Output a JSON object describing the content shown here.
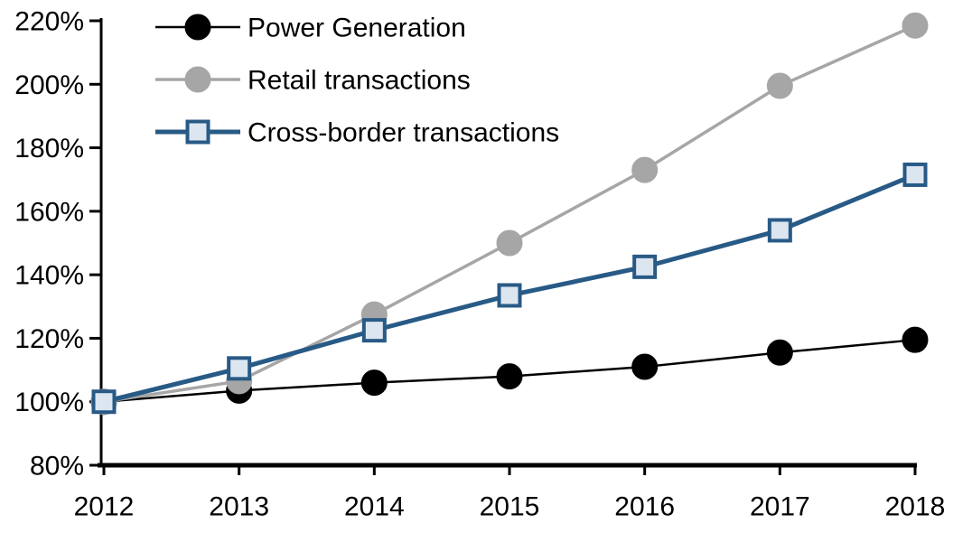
{
  "page": {
    "background": "#ffffff"
  },
  "chart_data": {
    "type": "line",
    "title": "",
    "xlabel": "",
    "ylabel": "",
    "x_tick_labels": [
      "2012",
      "2013",
      "2014",
      "2015",
      "2016",
      "2017",
      "2018"
    ],
    "y_axis": {
      "min": 80,
      "max": 220,
      "step": 20,
      "tick_labels": [
        "80%",
        "100%",
        "120%",
        "140%",
        "160%",
        "180%",
        "200%",
        "220%"
      ],
      "unit": "percent"
    },
    "axis_color": "#000000",
    "grid": false,
    "legend_position": "top-left",
    "series": [
      {
        "name": "Power Generation",
        "color": "#000000",
        "line_width": 2.5,
        "marker": {
          "shape": "circle",
          "fill": "#000000",
          "stroke": "#000000",
          "radius": 14
        },
        "values": [
          100,
          103.5,
          106,
          108,
          111,
          115.5,
          119.5
        ]
      },
      {
        "name": "Retail transactions",
        "color": "#A6A6A6",
        "line_width": 3.5,
        "marker": {
          "shape": "circle",
          "fill": "#A6A6A6",
          "stroke": "#A6A6A6",
          "radius": 14
        },
        "values": [
          100,
          106.5,
          127.5,
          150,
          173,
          199.5,
          218.5
        ]
      },
      {
        "name": "Cross-border transactions",
        "color": "#285A86",
        "line_width": 5,
        "marker": {
          "shape": "square",
          "fill": "#DCE6F1",
          "stroke": "#285A86",
          "size": 23,
          "stroke_width": 4
        },
        "values": [
          100,
          110.5,
          122.5,
          133.5,
          142.5,
          154,
          171.5
        ]
      }
    ]
  }
}
